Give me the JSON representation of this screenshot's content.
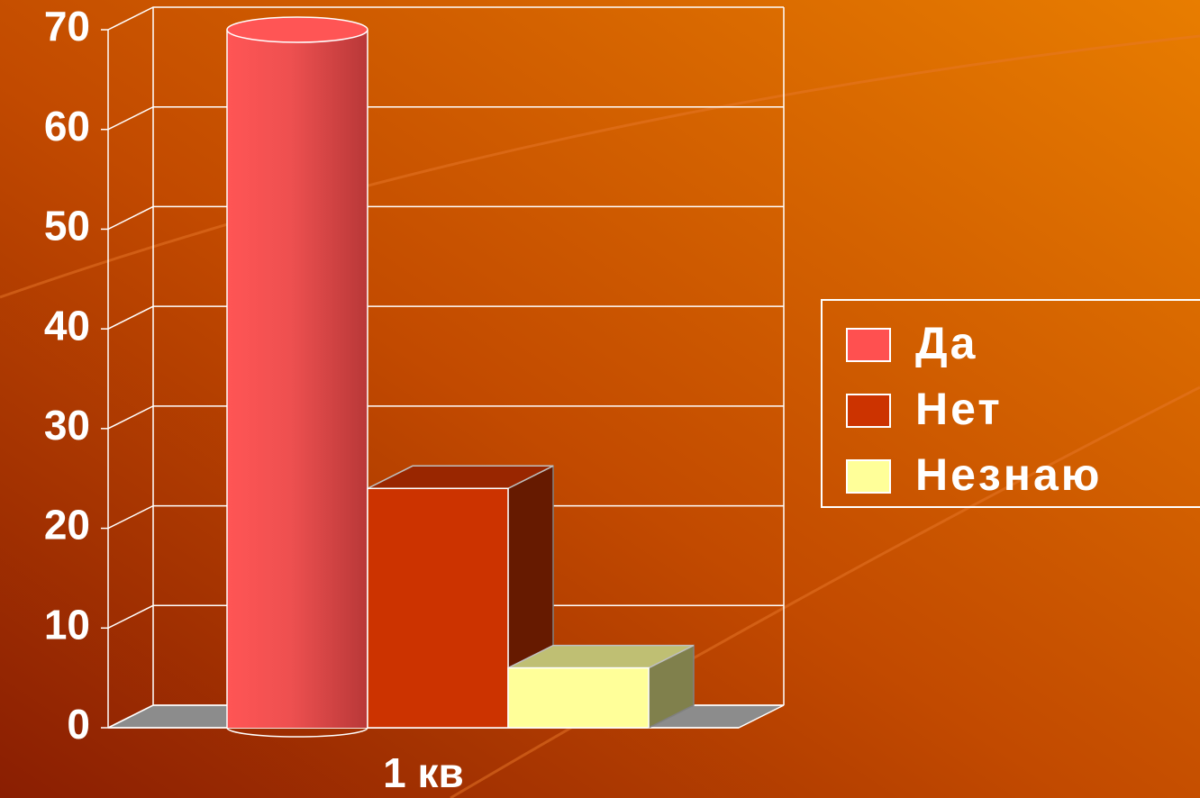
{
  "chart_data": {
    "type": "bar3d",
    "categories": [
      "1 кв"
    ],
    "series": [
      {
        "name": "Да",
        "color": "#ff5050",
        "values": [
          70
        ]
      },
      {
        "name": "Нет",
        "color": "#cc3300",
        "values": [
          24
        ]
      },
      {
        "name": "Незнаю",
        "color": "#ffff99",
        "values": [
          6
        ]
      }
    ],
    "ylim": [
      0,
      70
    ],
    "yticks": [
      0,
      10,
      20,
      30,
      40,
      50,
      60,
      70
    ],
    "grid": true,
    "legend": "right"
  }
}
